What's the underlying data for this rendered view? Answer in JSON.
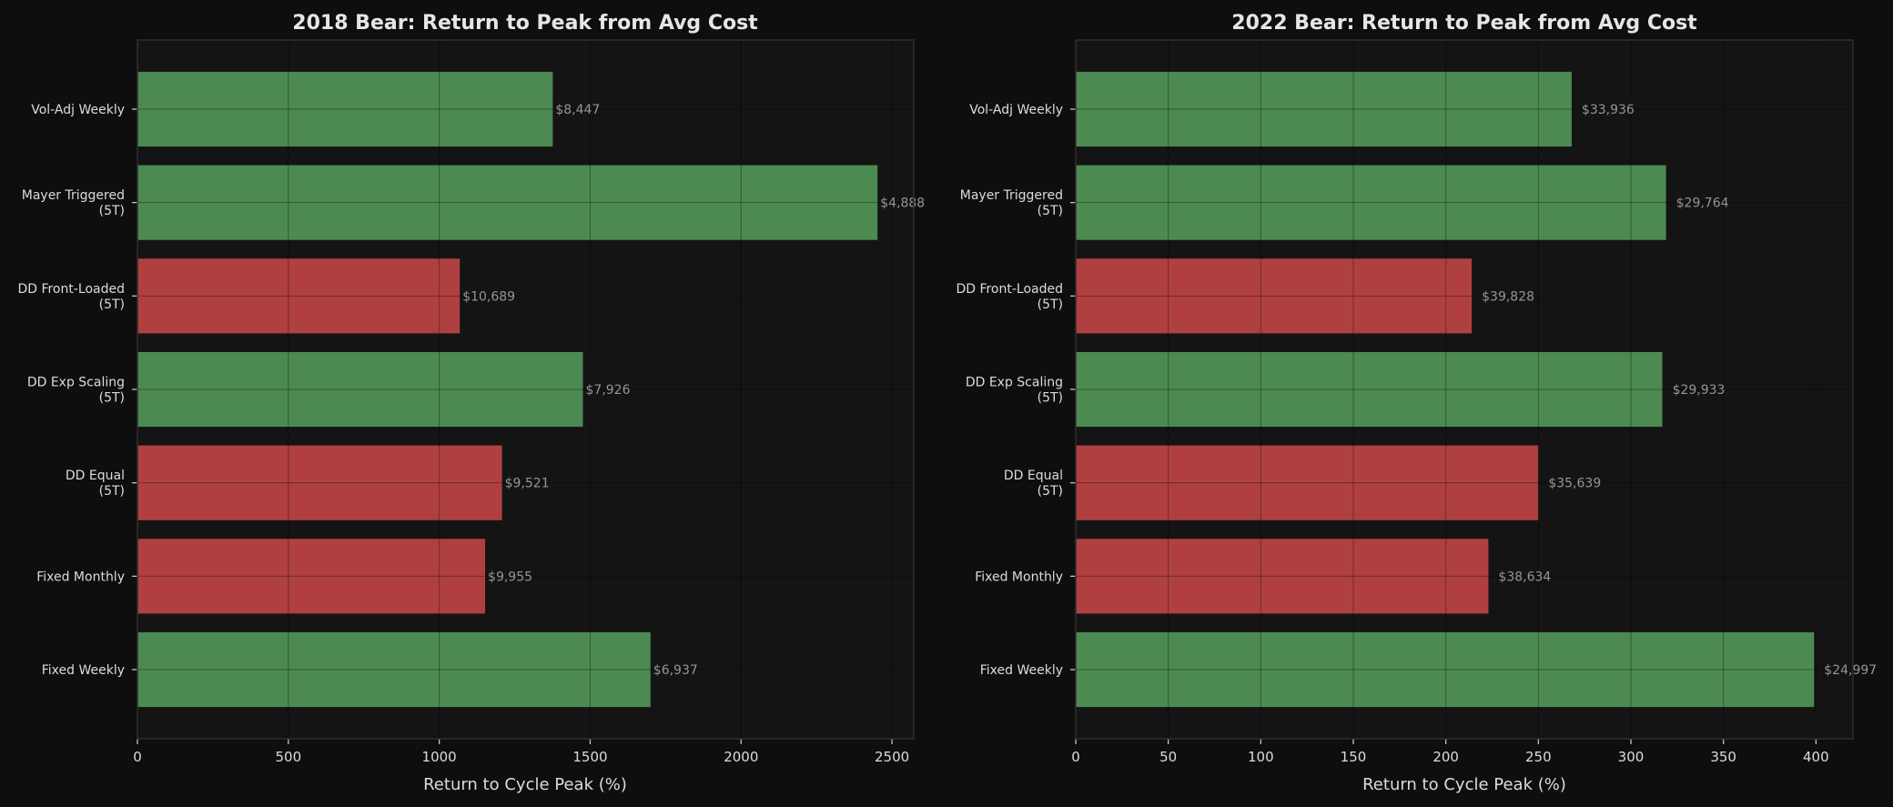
{
  "colors": {
    "background": "#0e0e0e",
    "axes_background": "#141414",
    "grid": "#2a2a2a",
    "positive": "#4c8a52",
    "negative": "#b04040"
  },
  "chart_data": [
    {
      "type": "bar",
      "orientation": "horizontal",
      "title": "2018 Bear: Return to Peak from Avg Cost",
      "xlabel": "Return to Cycle Peak (%)",
      "ylabel": "",
      "xlim": [
        0,
        2572
      ],
      "xticks": [
        "0",
        "500",
        "1000",
        "1500",
        "2000",
        "2500"
      ],
      "grid": true,
      "categories": [
        [
          "Vol-Adj Weekly"
        ],
        [
          "Mayer Triggered",
          "(5T)"
        ],
        [
          "DD Front-Loaded",
          "(5T)"
        ],
        [
          "DD Exp Scaling",
          "(5T)"
        ],
        [
          "DD Equal",
          "(5T)"
        ],
        [
          "Fixed Monthly"
        ],
        [
          "Fixed Weekly"
        ]
      ],
      "values": [
        1376,
        2452,
        1068,
        1476,
        1208,
        1152,
        1700
      ],
      "bar_colors": [
        "positive",
        "positive",
        "negative",
        "positive",
        "negative",
        "negative",
        "positive"
      ],
      "data_labels": [
        "$8,447",
        "$4,888",
        "$10,689",
        "$7,926",
        "$9,521",
        "$9,955",
        "$6,937"
      ]
    },
    {
      "type": "bar",
      "orientation": "horizontal",
      "title": "2022 Bear: Return to Peak from Avg Cost",
      "xlabel": "Return to Cycle Peak (%)",
      "ylabel": "",
      "xlim": [
        0,
        420
      ],
      "xticks": [
        "0",
        "50",
        "100",
        "150",
        "200",
        "250",
        "300",
        "350",
        "400"
      ],
      "grid": true,
      "categories": [
        [
          "Vol-Adj Weekly"
        ],
        [
          "Mayer Triggered",
          "(5T)"
        ],
        [
          "DD Front-Loaded",
          "(5T)"
        ],
        [
          "DD Exp Scaling",
          "(5T)"
        ],
        [
          "DD Equal",
          "(5T)"
        ],
        [
          "Fixed Monthly"
        ],
        [
          "Fixed Weekly"
        ]
      ],
      "values": [
        268,
        319,
        214,
        317,
        250,
        223,
        399
      ],
      "bar_colors": [
        "positive",
        "positive",
        "negative",
        "positive",
        "negative",
        "negative",
        "positive"
      ],
      "data_labels": [
        "$33,936",
        "$29,764",
        "$39,828",
        "$29,933",
        "$35,639",
        "$38,634",
        "$24,997"
      ]
    }
  ]
}
